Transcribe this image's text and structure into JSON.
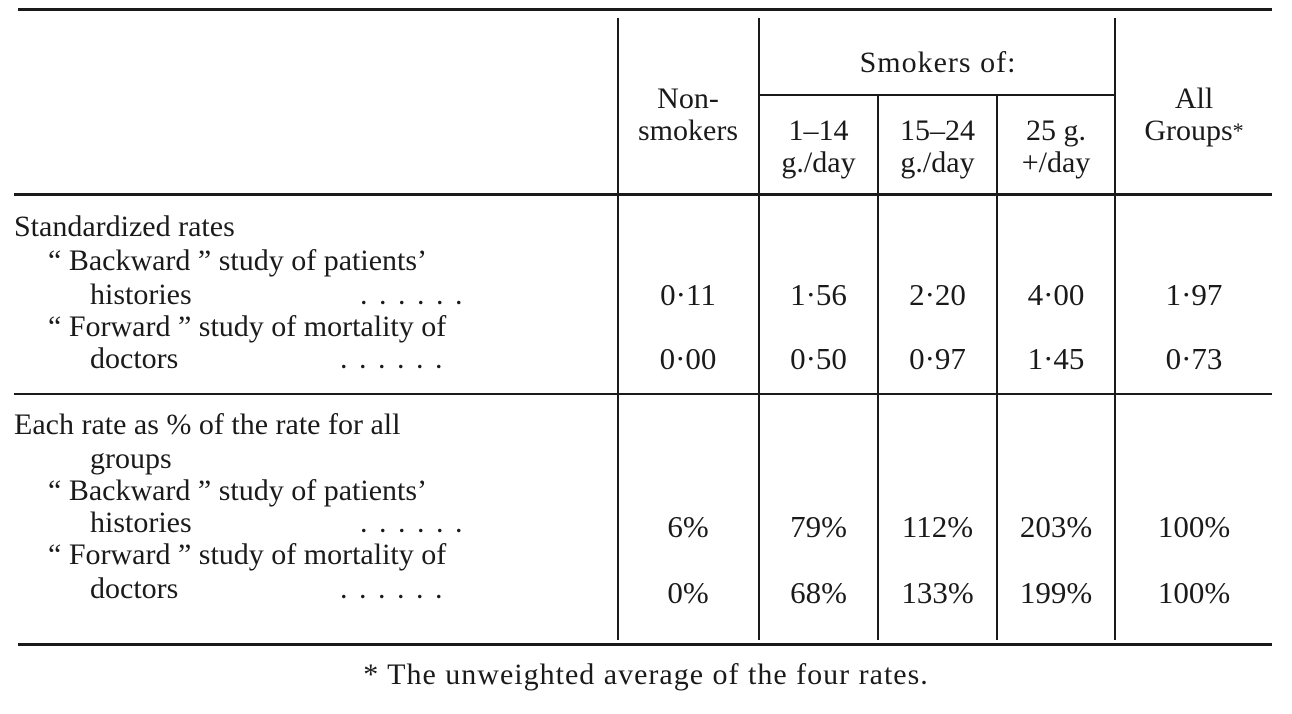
{
  "headers": {
    "non_smokers_line1": "Non-",
    "non_smokers_line2": "smokers",
    "smokers_of": "Smokers of:",
    "col1_line1": "1–14",
    "col1_line2": "g./day",
    "col2_line1": "15–24",
    "col2_line2": "g./day",
    "col3_line1": "25 g.",
    "col3_line2": "+/day",
    "all_line1": "All",
    "all_line2": "Groups",
    "all_star": "*"
  },
  "section1": {
    "title": "Standardized rates",
    "row1_line1": "“ Backward ” study of patients’",
    "row1_line2": "histories",
    "row1_leaders": ". .    . .    . .",
    "row1_values": [
      "0·11",
      "1·56",
      "2·20",
      "4·00",
      "1·97"
    ],
    "row2_line1": "“ Forward ” study of mortality of",
    "row2_line2": "doctors",
    "row2_leaders": ". .    . .    . .",
    "row2_values": [
      "0·00",
      "0·50",
      "0·97",
      "1·45",
      "0·73"
    ]
  },
  "section2": {
    "title_line1": "Each rate as % of the rate for all",
    "title_line2": "groups",
    "row1_line1": "“ Backward ” study of patients’",
    "row1_line2": "histories",
    "row1_leaders": ". .    . .    . .",
    "row1_values": [
      "6%",
      "79%",
      "112%",
      "203%",
      "100%"
    ],
    "row2_line1": "“ Forward ” study of mortality of",
    "row2_line2": "doctors",
    "row2_leaders": ". .    . .    . .",
    "row2_values": [
      "0%",
      "68%",
      "133%",
      "199%",
      "100%"
    ]
  },
  "footnote": "* The unweighted average of the four rates."
}
